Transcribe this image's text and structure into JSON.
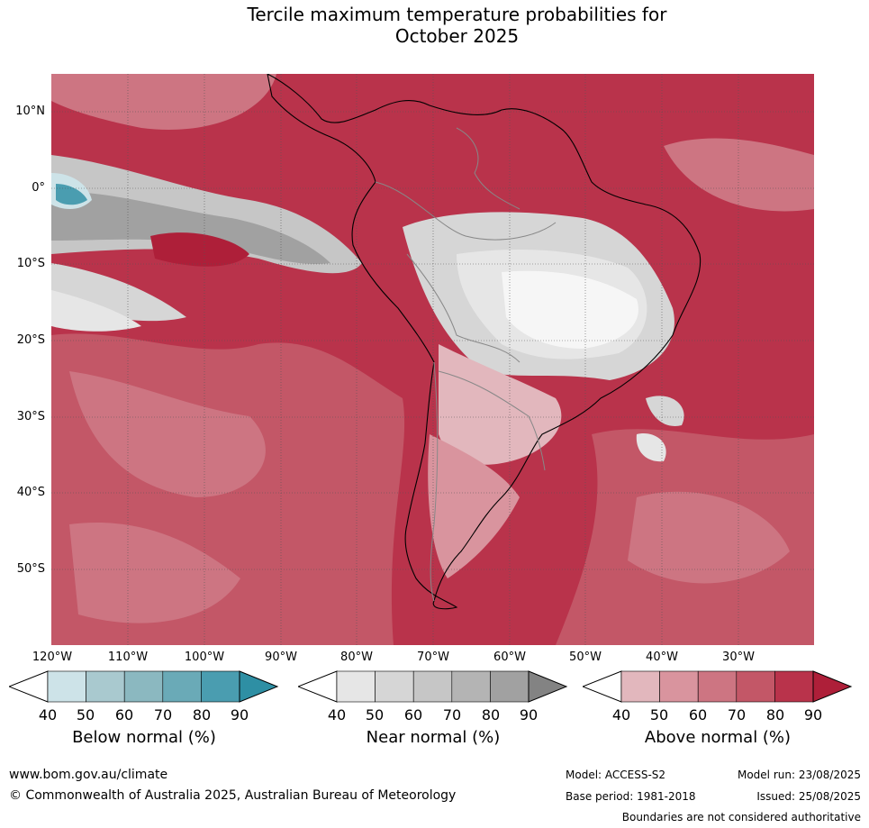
{
  "title_line1": "Tercile maximum temperature probabilities for",
  "title_line2": "October 2025",
  "lat_labels": [
    "10°N",
    "0°",
    "10°S",
    "20°S",
    "30°S",
    "40°S",
    "50°S"
  ],
  "lon_labels": [
    "120°W",
    "110°W",
    "100°W",
    "90°W",
    "80°W",
    "70°W",
    "60°W",
    "50°W",
    "40°W",
    "30°W"
  ],
  "colorbars": [
    {
      "title": "Below normal (%)",
      "ticks": [
        "40",
        "50",
        "60",
        "70",
        "80",
        "90"
      ],
      "colors": [
        "#cde3e8",
        "#a9c9cf",
        "#8bb8c0",
        "#6aaab7",
        "#4a9db0",
        "#2e8fa4"
      ]
    },
    {
      "title": "Near normal (%)",
      "ticks": [
        "40",
        "50",
        "60",
        "70",
        "80",
        "90"
      ],
      "colors": [
        "#e6e6e6",
        "#d6d6d6",
        "#c6c6c6",
        "#b4b4b4",
        "#a1a1a1",
        "#838383"
      ]
    },
    {
      "title": "Above normal (%)",
      "ticks": [
        "40",
        "50",
        "60",
        "70",
        "80",
        "90"
      ],
      "colors": [
        "#e2b7bd",
        "#d9949e",
        "#cd7582",
        "#c35767",
        "#b9334b",
        "#ae1f39"
      ]
    }
  ],
  "footer": {
    "website": "www.bom.gov.au/climate",
    "copyright": "© Commonwealth of Australia 2025, Australian Bureau of Meteorology",
    "model": "Model: ACCESS-S2",
    "model_run": "Model run: 23/08/2025",
    "base_period": "Base period: 1981-2018",
    "issued": "Issued: 25/08/2025",
    "disclaimer": "Boundaries are not considered authoritative"
  }
}
